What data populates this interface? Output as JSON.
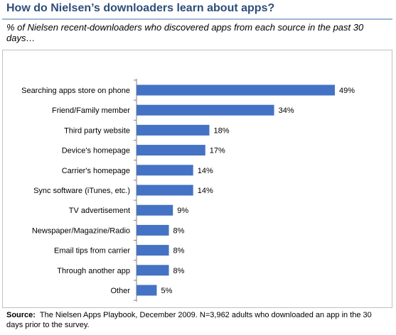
{
  "title": "How do Nielsen’s downloaders learn about apps?",
  "subtitle": "% of Nielsen recent-downloaders who discovered apps from each source in the past 30 days…",
  "source": {
    "label": "Source:",
    "text": "The Nielsen Apps Playbook, December 2009. N=3,962 adults who downloaded an app in the 30 days prior to the survey."
  },
  "colors": {
    "bar": "#4472c4",
    "title": "#2e4e7a"
  },
  "chart_data": {
    "type": "bar",
    "orientation": "horizontal",
    "categories": [
      "Searching apps store on phone",
      "Friend/Family member",
      "Third party website",
      "Device's homepage",
      "Carrier's homepage",
      "Sync software (iTunes, etc.)",
      "TV advertisement",
      "Newspaper/Magazine/Radio",
      "Email tips from carrier",
      "Through another app",
      "Other"
    ],
    "values": [
      49,
      34,
      18,
      17,
      14,
      14,
      9,
      8,
      8,
      8,
      5
    ],
    "value_labels": [
      "49%",
      "34%",
      "18%",
      "17%",
      "14%",
      "14%",
      "9%",
      "8%",
      "8%",
      "8%",
      "5%"
    ],
    "xlim": [
      0,
      49
    ],
    "grid": false
  }
}
